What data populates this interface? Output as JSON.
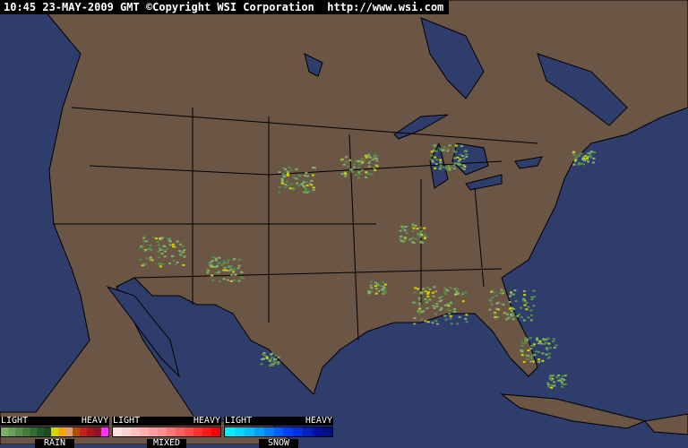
{
  "header": {
    "text": "10:45 23-MAY-2009 GMT ©Copyright WSI Corporation  http://www.wsi.com"
  },
  "colors": {
    "ocean": "#2e3d6b",
    "land": "#6b5646",
    "border": "#000000"
  },
  "legend": [
    {
      "name": "RAIN",
      "light": "LIGHT",
      "heavy": "HEAVY",
      "colors": [
        "#7fb06a",
        "#6a9f5a",
        "#578e4c",
        "#457c3e",
        "#336b31",
        "#225a25",
        "#1a4a1c",
        "#d4d400",
        "#f0a800",
        "#e0a070",
        "#b05000",
        "#c82020",
        "#a81818",
        "#901030",
        "#ff30ff"
      ]
    },
    {
      "name": "MIXED",
      "light": "LIGHT",
      "heavy": "HEAVY",
      "colors": [
        "#ffe0e0",
        "#ffd0d0",
        "#ffc0c0",
        "#ffb0b0",
        "#ffa0a0",
        "#ff9090",
        "#ff7878",
        "#ff6060",
        "#ff4848",
        "#ff3030",
        "#ff1818",
        "#ff0000"
      ]
    },
    {
      "name": "SNOW",
      "light": "LIGHT",
      "heavy": "HEAVY",
      "colors": [
        "#00f0ff",
        "#00d8ff",
        "#00c0ff",
        "#00a0ff",
        "#0080ff",
        "#0060ff",
        "#0040ff",
        "#0030e0",
        "#0020c0",
        "#0010a0",
        "#001080"
      ]
    }
  ]
}
